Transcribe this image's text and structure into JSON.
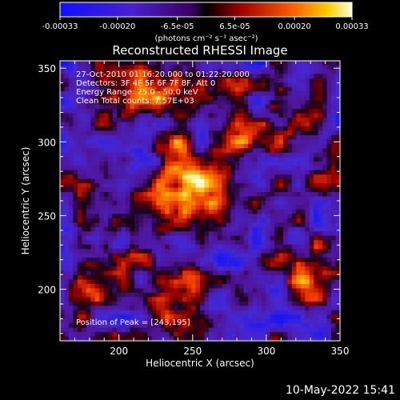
{
  "colorbar": {
    "tick_labels": [
      "-0.00033",
      "-0.00020",
      "-6.5e-05",
      "6.5e-05",
      "0.00020",
      "0.00033"
    ],
    "tick_values": [
      -0.00033,
      -0.0002,
      -6.5e-05,
      6.5e-05,
      0.0002,
      0.00033
    ],
    "unit_label": "(photons cm⁻² s⁻¹ asec⁻²)",
    "range": [
      -0.00033,
      0.00033
    ]
  },
  "chart_data": {
    "type": "heatmap",
    "title": "Reconstructed RHESSI Image",
    "xlabel": "Heliocentric X (arcsec)",
    "ylabel": "Heliocentric Y (arcsec)",
    "xlim": [
      160,
      350
    ],
    "ylim": [
      165,
      355
    ],
    "x_ticks": [
      200,
      250,
      300,
      350
    ],
    "y_ticks": [
      200,
      250,
      300,
      350
    ],
    "x_tick_labels": [
      "200",
      "250",
      "300",
      "350"
    ],
    "y_tick_labels": [
      "200",
      "250",
      "300",
      "350"
    ],
    "peak": [
      243,
      195
    ],
    "bright_regions": [
      {
        "x": 242,
        "y": 283,
        "level": 1.0
      },
      {
        "x": 253,
        "y": 258,
        "level": 0.75
      },
      {
        "x": 245,
        "y": 205,
        "level": 0.8
      },
      {
        "x": 218,
        "y": 330,
        "level": 0.55
      },
      {
        "x": 290,
        "y": 305,
        "level": 0.55
      },
      {
        "x": 330,
        "y": 210,
        "level": 0.65
      },
      {
        "x": 175,
        "y": 200,
        "level": 0.55
      }
    ]
  },
  "annotations": {
    "time": "27-Oct-2010 01:16:20.000 to 01:22:20.000",
    "detectors": "Detectors: 3F 4F 5F 6F 7F 8F, Att 0",
    "energy": "Energy Range: 25.0 - 50.0 keV",
    "clean": "Clean      Total counts: 7.57E+03",
    "peak": "Position of Peak = [243,195]"
  },
  "footer": {
    "date": "10-May-2022 15:41"
  }
}
